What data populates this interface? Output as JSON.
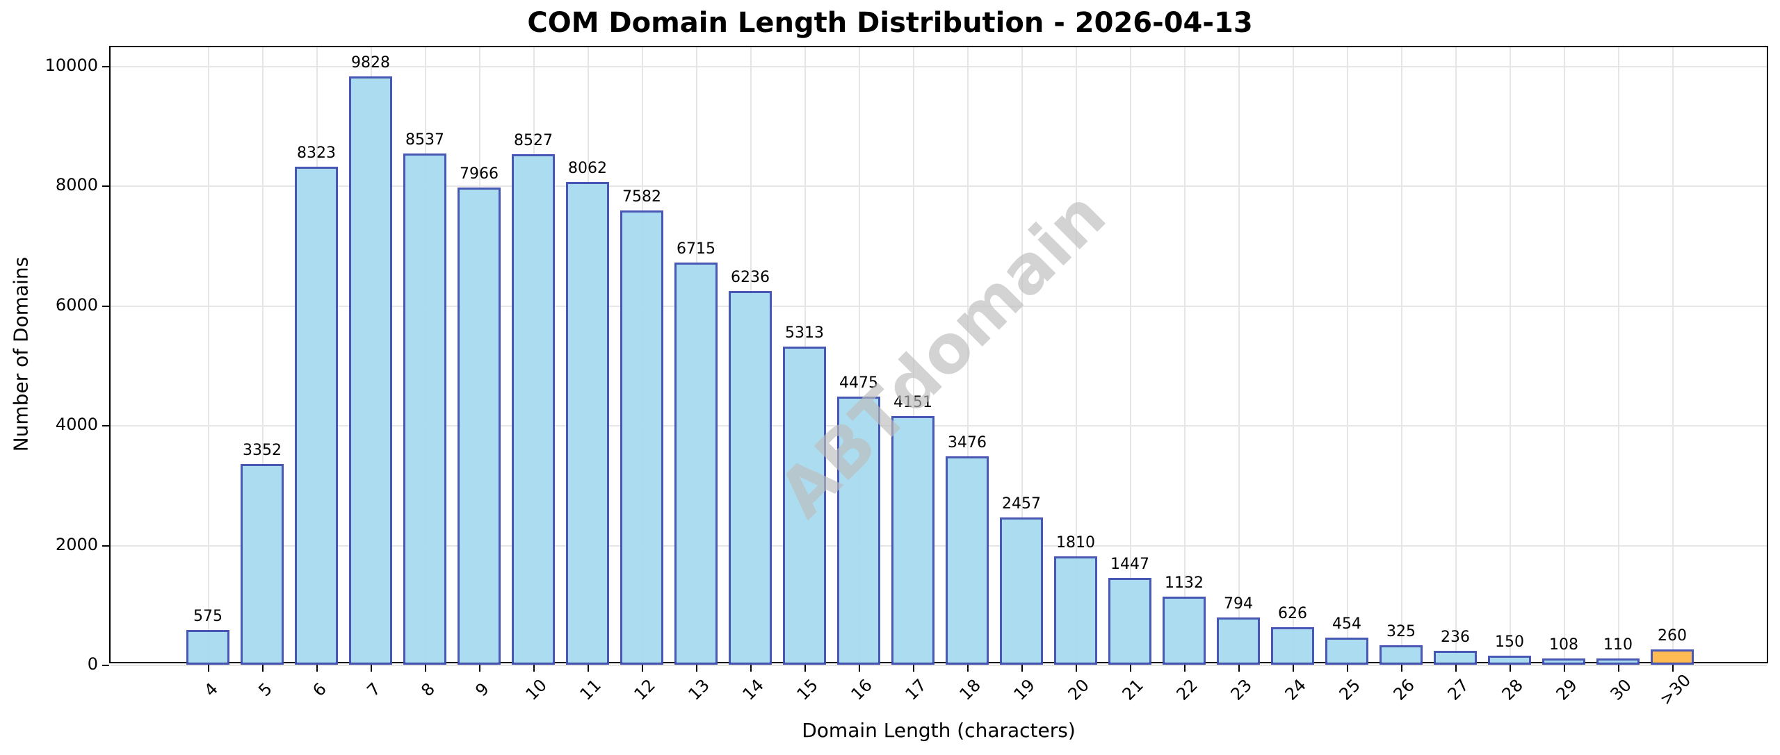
{
  "title": "COM Domain Length Distribution - 2026-04-13",
  "watermark": "ABTdomain",
  "colors": {
    "bar_fill": "#a8dbef",
    "bar_edge": "#3f4fb0",
    "highlight_fill": "#ffb84a",
    "grid": "#e6e6e6"
  },
  "chart_data": {
    "type": "bar",
    "title": "COM Domain Length Distribution - 2026-04-13",
    "xlabel": "Domain Length (characters)",
    "ylabel": "Number of Domains",
    "categories": [
      "4",
      "5",
      "6",
      "7",
      "8",
      "9",
      "10",
      "11",
      "12",
      "13",
      "14",
      "15",
      "16",
      "17",
      "18",
      "19",
      "20",
      "21",
      "22",
      "23",
      "24",
      "25",
      "26",
      "27",
      "28",
      "29",
      "30",
      ">30"
    ],
    "values": [
      575,
      3352,
      8323,
      9828,
      8537,
      7966,
      8527,
      8062,
      7582,
      6715,
      6236,
      5313,
      4475,
      4151,
      3476,
      2457,
      1810,
      1447,
      1132,
      794,
      626,
      454,
      325,
      236,
      150,
      108,
      110,
      260
    ],
    "highlighted_category": ">30",
    "yticks": [
      0,
      2000,
      4000,
      6000,
      8000,
      10000
    ],
    "ylim": [
      0,
      10300
    ],
    "grid": true,
    "legend": null,
    "xtick_rotation": 45,
    "watermark": "ABTdomain"
  }
}
